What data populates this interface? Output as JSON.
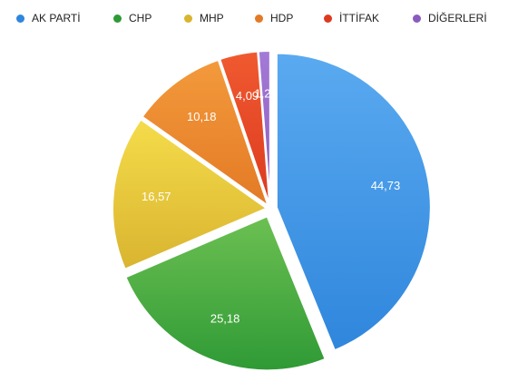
{
  "chart_data": {
    "type": "pie",
    "title": "",
    "legend_position": "top",
    "slices": [
      {
        "name": "AK PARTİ",
        "value": 44.73,
        "label": "44,73",
        "color": "#2f86dc",
        "color_light": "#5aaaf0"
      },
      {
        "name": "CHP",
        "value": 25.18,
        "label": "25,18",
        "color": "#2f9a35",
        "color_light": "#6cc052"
      },
      {
        "name": "MHP",
        "value": 16.57,
        "label": "16,57",
        "color": "#d9b430",
        "color_light": "#f5dc4a"
      },
      {
        "name": "HDP",
        "value": 10.18,
        "label": "10,18",
        "color": "#e37a25",
        "color_light": "#f39a3c"
      },
      {
        "name": "İTTİFAK",
        "value": 4.09,
        "label": "4,09",
        "color": "#dc3a1f",
        "color_light": "#f05a30"
      },
      {
        "name": "DİĞERLERİ",
        "value": 1.25,
        "label": "1,25",
        "color": "#8a5bbf",
        "color_light": "#a47ad6"
      }
    ]
  }
}
